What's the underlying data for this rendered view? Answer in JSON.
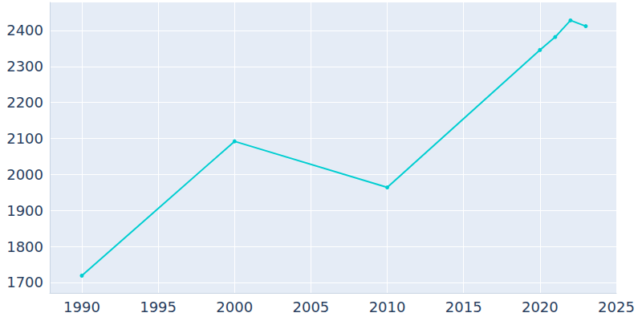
{
  "chart_data": {
    "type": "line",
    "x": [
      1990,
      2000,
      2010,
      2020,
      2021,
      2022,
      2023
    ],
    "values": [
      1719,
      2092,
      1964,
      2346,
      2382,
      2428,
      2412
    ],
    "color": "#00ced1",
    "marker": "circle",
    "xlim": [
      1987.9,
      2025
    ],
    "xticks": [
      1990,
      1995,
      2000,
      2005,
      2010,
      2015,
      2020,
      2025
    ],
    "ylim": [
      1671,
      2478
    ],
    "yticks": [
      1700,
      1800,
      1900,
      2000,
      2100,
      2200,
      2300,
      2400
    ],
    "grid": true
  }
}
